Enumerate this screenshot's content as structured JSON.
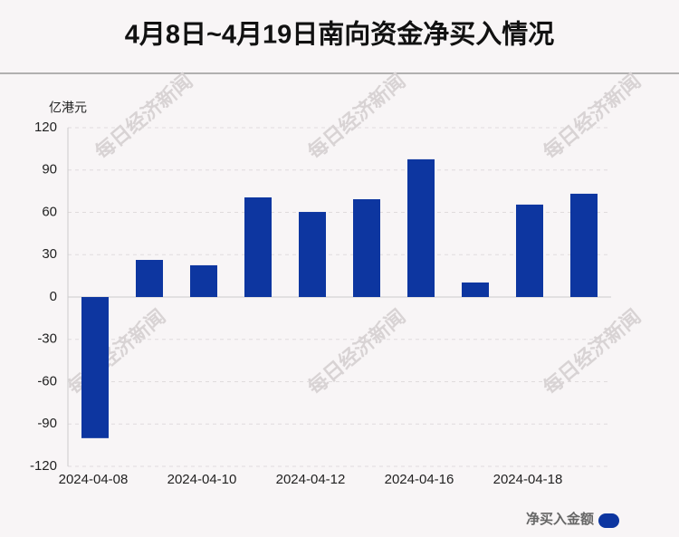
{
  "chart_data": {
    "type": "bar",
    "title": "4月8日~4月19日南向资金净买入情况",
    "y_label": "亿港元",
    "watermark": "每日经济新闻",
    "categories": [
      "2024-04-08",
      null,
      "2024-04-10",
      null,
      "2024-04-12",
      null,
      "2024-04-16",
      null,
      "2024-04-18",
      null
    ],
    "series": [
      {
        "name": "净买入金额",
        "color": "#0d36a0",
        "values": [
          -100,
          26.3,
          22.5,
          70.6,
          60.3,
          69.3,
          97.6,
          10.3,
          65.5,
          73.2
        ]
      }
    ],
    "ylim": [
      -120,
      120
    ],
    "yticks": [
      -120,
      -90,
      -60,
      -30,
      0,
      30,
      60,
      90,
      120
    ],
    "grid": true,
    "legend": "bottom-right"
  }
}
